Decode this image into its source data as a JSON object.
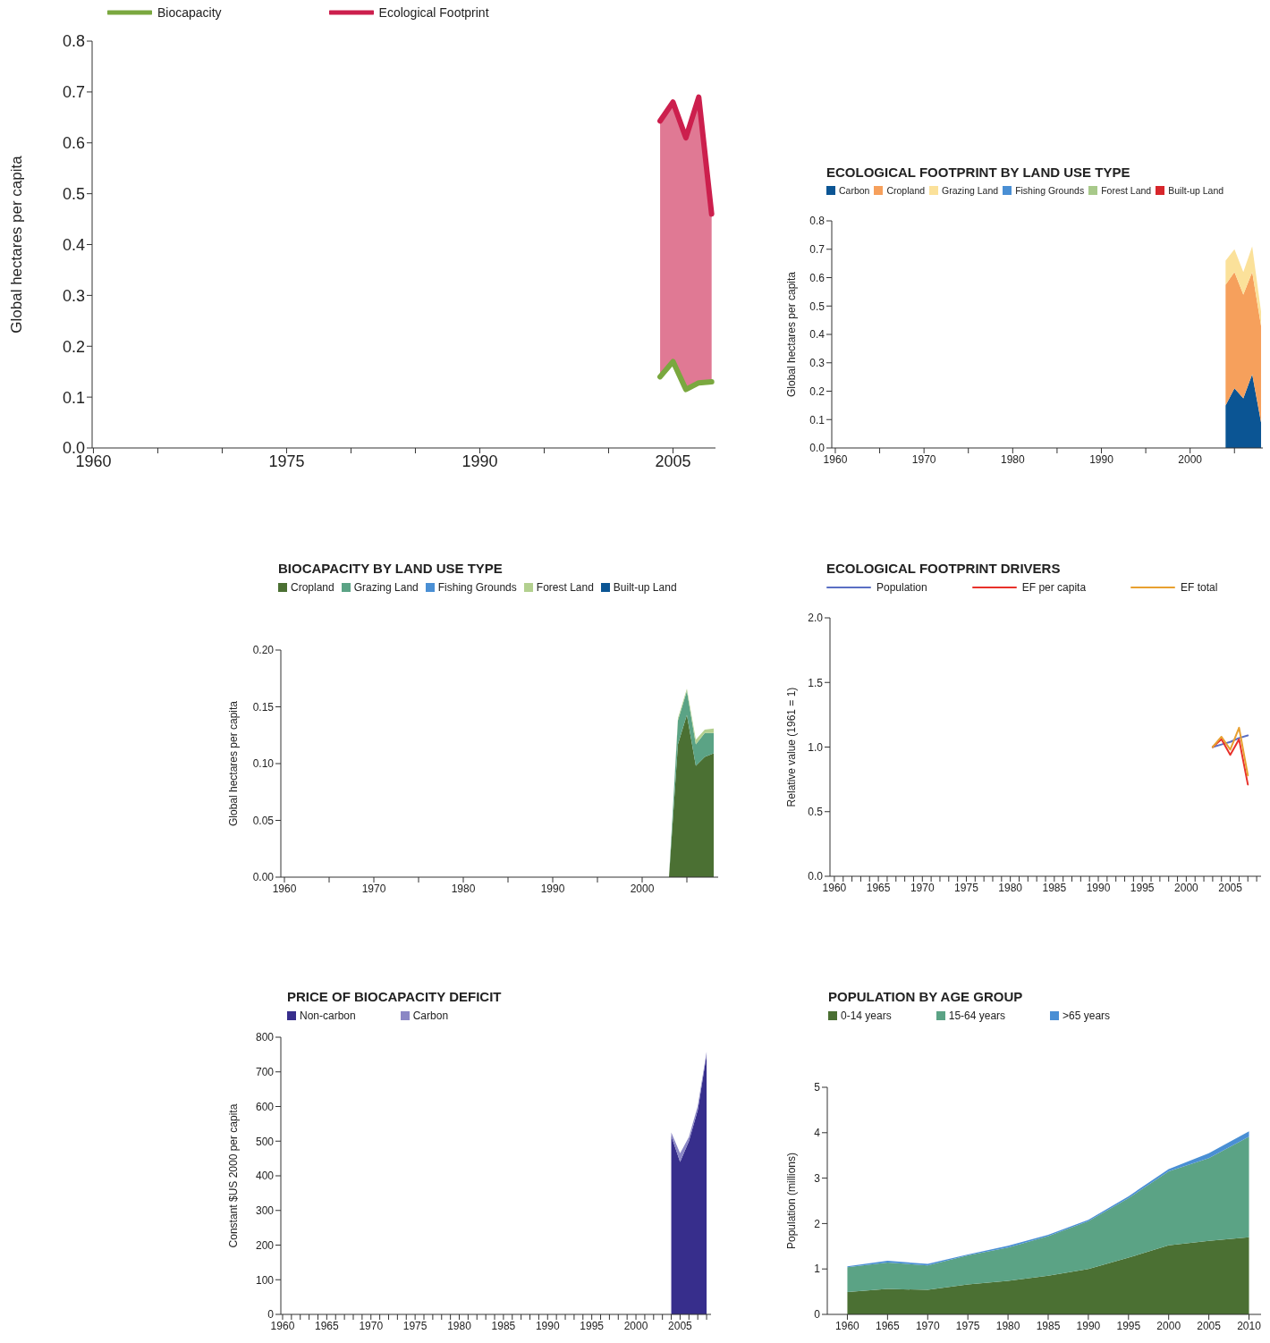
{
  "chart_data": [
    {
      "type": "line",
      "ylabel": "Global hectares per capita",
      "x": [
        2004,
        2005,
        2006,
        2007,
        2008
      ],
      "xlim": [
        1959.9,
        2008.3
      ],
      "xticks": [
        1960,
        {
          "value": 1965,
          "label": null
        },
        {
          "value": 1970,
          "label": null
        },
        1975,
        {
          "value": 1980,
          "label": null
        },
        {
          "value": 1985,
          "label": null
        },
        1990,
        {
          "value": 1995,
          "label": null
        },
        {
          "value": 2000,
          "label": null
        },
        2005
      ],
      "ylim": [
        0,
        0.8
      ],
      "yticks": [
        {
          "value": 0,
          "label": "0.0"
        },
        0.1,
        0.2,
        0.3,
        0.4,
        0.5,
        0.6,
        0.7,
        0.8
      ],
      "legend": "top left",
      "marker": "none",
      "line_style": "solid",
      "series": [
        {
          "name": "Biocapacity",
          "color": "#7aa83f",
          "values": [
            0.14,
            0.17,
            0.115,
            0.128,
            0.13
          ]
        },
        {
          "name": "Ecological Footprint",
          "color": "#cc1f4d",
          "values": [
            0.643,
            0.68,
            0.61,
            0.69,
            0.46
          ],
          "lower": [
            0.14,
            0.17,
            0.115,
            0.128,
            0.13
          ],
          "upper": [
            0.643,
            0.68,
            0.61,
            0.69,
            0.46
          ]
        }
      ]
    },
    {
      "type": "area",
      "title": "ECOLOGICAL FOOTPRINT BY LAND USE TYPE",
      "ylabel": "Global hectares per capita",
      "stacked": true,
      "x": [
        2004,
        2005,
        2006,
        2007,
        2008
      ],
      "xlim": [
        1959.6,
        2008.2
      ],
      "xticks": [
        1960,
        {
          "value": 1965,
          "label": null
        },
        1970,
        {
          "value": 1975,
          "label": null
        },
        1980,
        {
          "value": 1985,
          "label": null
        },
        1990,
        {
          "value": 1995,
          "label": null
        },
        2000,
        {
          "value": 2005,
          "label": null
        }
      ],
      "ylim": [
        0,
        0.8
      ],
      "yticks": [
        {
          "value": 0,
          "label": "0.0"
        },
        0.1,
        0.2,
        0.3,
        0.4,
        0.5,
        0.6,
        0.7,
        0.8
      ],
      "legend": "top left",
      "series": [
        {
          "name": "Carbon",
          "color": "#0b5594",
          "values": [
            0.15,
            0.21,
            0.175,
            0.26,
            0.09
          ]
        },
        {
          "name": "Cropland",
          "color": "#f6a05c",
          "values": [
            0.425,
            0.41,
            0.365,
            0.36,
            0.34
          ]
        },
        {
          "name": "Grazing Land",
          "color": "#fbe19a",
          "values": [
            0.085,
            0.08,
            0.08,
            0.09,
            0.05
          ]
        },
        {
          "name": "Fishing Grounds",
          "color": "#4a8fd4",
          "values": [
            null,
            null,
            null,
            null,
            null
          ]
        },
        {
          "name": "Forest Land",
          "color": "#a8c98a",
          "values": [
            null,
            null,
            null,
            null,
            null
          ]
        },
        {
          "name": "Built-up Land",
          "color": "#d7262b",
          "values": [
            null,
            null,
            null,
            null,
            null
          ]
        }
      ]
    },
    {
      "type": "area",
      "title": "BIOCAPACITY BY LAND USE TYPE",
      "ylabel": "Global hectares per capita",
      "stacked": true,
      "x": [
        2003,
        2004,
        2005,
        2006,
        2007,
        2008
      ],
      "xlim": [
        1959.6,
        2008.5
      ],
      "xticks": [
        1960,
        {
          "value": 1965,
          "label": null
        },
        1970,
        {
          "value": 1975,
          "label": null
        },
        1980,
        {
          "value": 1985,
          "label": null
        },
        1990,
        {
          "value": 1995,
          "label": null
        },
        2000,
        {
          "value": 2005,
          "label": null
        }
      ],
      "ylim": [
        0,
        0.2
      ],
      "yticks": [
        {
          "value": 0,
          "label": "0.00"
        },
        0.05,
        {
          "value": 0.1,
          "label": "0.10"
        },
        0.15,
        {
          "value": 0.2,
          "label": "0.20"
        }
      ],
      "legend": "top left",
      "series": [
        {
          "name": "Cropland",
          "color": "#4b7033",
          "values": [
            0,
            0.117,
            0.143,
            0.098,
            0.106,
            0.109
          ]
        },
        {
          "name": "Grazing Land",
          "color": "#5ba385",
          "values": [
            0,
            0.021,
            0.021,
            0.019,
            0.021,
            0.018
          ]
        },
        {
          "name": "Fishing Grounds",
          "color": "#4a8fd4",
          "values": [
            null,
            null,
            null,
            null,
            null,
            null
          ]
        },
        {
          "name": "Forest Land",
          "color": "#b3d08f",
          "values": [
            0,
            0.002,
            0.002,
            0.004,
            0.003,
            0.004
          ]
        },
        {
          "name": "Built-up Land",
          "color": "#0b5594",
          "values": [
            null,
            null,
            null,
            null,
            null,
            null
          ]
        }
      ]
    },
    {
      "type": "line",
      "title": "ECOLOGICAL FOOTPRINT DRIVERS",
      "ylabel": "Relative value (1961 = 1)",
      "x": [
        2003,
        2004,
        2005,
        2006,
        2007
      ],
      "xlim": [
        1959.5,
        2008.5
      ],
      "xticks": [
        1960,
        {
          "value": 1961,
          "label": null
        },
        {
          "value": 1962,
          "label": null
        },
        {
          "value": 1963,
          "label": null
        },
        {
          "value": 1964,
          "label": null
        },
        1965,
        {
          "value": 1966,
          "label": null
        },
        {
          "value": 1967,
          "label": null
        },
        {
          "value": 1968,
          "label": null
        },
        {
          "value": 1969,
          "label": null
        },
        1970,
        {
          "value": 1971,
          "label": null
        },
        {
          "value": 1972,
          "label": null
        },
        {
          "value": 1973,
          "label": null
        },
        {
          "value": 1974,
          "label": null
        },
        1975,
        {
          "value": 1976,
          "label": null
        },
        {
          "value": 1977,
          "label": null
        },
        {
          "value": 1978,
          "label": null
        },
        {
          "value": 1979,
          "label": null
        },
        1980,
        {
          "value": 1981,
          "label": null
        },
        {
          "value": 1982,
          "label": null
        },
        {
          "value": 1983,
          "label": null
        },
        {
          "value": 1984,
          "label": null
        },
        1985,
        {
          "value": 1986,
          "label": null
        },
        {
          "value": 1987,
          "label": null
        },
        {
          "value": 1988,
          "label": null
        },
        {
          "value": 1989,
          "label": null
        },
        1990,
        {
          "value": 1991,
          "label": null
        },
        {
          "value": 1992,
          "label": null
        },
        {
          "value": 1993,
          "label": null
        },
        {
          "value": 1994,
          "label": null
        },
        1995,
        {
          "value": 1996,
          "label": null
        },
        {
          "value": 1997,
          "label": null
        },
        {
          "value": 1998,
          "label": null
        },
        {
          "value": 1999,
          "label": null
        },
        2000,
        {
          "value": 2001,
          "label": null
        },
        {
          "value": 2002,
          "label": null
        },
        {
          "value": 2003,
          "label": null
        },
        {
          "value": 2004,
          "label": null
        },
        2005,
        {
          "value": 2006,
          "label": null
        },
        {
          "value": 2007,
          "label": null
        },
        {
          "value": 2008,
          "label": null
        }
      ],
      "ylim": [
        0,
        2
      ],
      "yticks": [
        {
          "value": 0,
          "label": "0.0"
        },
        0.5,
        {
          "value": 1,
          "label": "1.0"
        },
        1.5,
        {
          "value": 2,
          "label": "2.0"
        }
      ],
      "legend": "top left",
      "marker": "none",
      "line_style": "solid",
      "series": [
        {
          "name": "Population",
          "color": "#5a6fc4",
          "values": [
            1.0,
            1.02,
            1.04,
            1.07,
            1.09
          ]
        },
        {
          "name": "EF per capita",
          "color": "#e8322b",
          "values": [
            1.0,
            1.06,
            0.94,
            1.06,
            0.71
          ]
        },
        {
          "name": "EF total",
          "color": "#e8a030",
          "values": [
            1.0,
            1.08,
            0.98,
            1.15,
            0.78
          ]
        }
      ]
    },
    {
      "type": "area",
      "title": "PRICE OF BIOCAPACITY DEFICIT",
      "ylabel": "Constant $US 2000 per capita",
      "stacked": true,
      "x": [
        2004,
        2005,
        2006,
        2007,
        2008
      ],
      "xlim": [
        1959.8,
        2008.5
      ],
      "xticks": [
        1960,
        {
          "value": 1961,
          "label": null
        },
        {
          "value": 1962,
          "label": null
        },
        {
          "value": 1963,
          "label": null
        },
        {
          "value": 1964,
          "label": null
        },
        1965,
        {
          "value": 1966,
          "label": null
        },
        {
          "value": 1967,
          "label": null
        },
        {
          "value": 1968,
          "label": null
        },
        {
          "value": 1969,
          "label": null
        },
        1970,
        {
          "value": 1971,
          "label": null
        },
        {
          "value": 1972,
          "label": null
        },
        {
          "value": 1973,
          "label": null
        },
        {
          "value": 1974,
          "label": null
        },
        1975,
        {
          "value": 1976,
          "label": null
        },
        {
          "value": 1977,
          "label": null
        },
        {
          "value": 1978,
          "label": null
        },
        {
          "value": 1979,
          "label": null
        },
        1980,
        {
          "value": 1981,
          "label": null
        },
        {
          "value": 1982,
          "label": null
        },
        {
          "value": 1983,
          "label": null
        },
        {
          "value": 1984,
          "label": null
        },
        1985,
        {
          "value": 1986,
          "label": null
        },
        {
          "value": 1987,
          "label": null
        },
        {
          "value": 1988,
          "label": null
        },
        {
          "value": 1989,
          "label": null
        },
        1990,
        {
          "value": 1991,
          "label": null
        },
        {
          "value": 1992,
          "label": null
        },
        {
          "value": 1993,
          "label": null
        },
        {
          "value": 1994,
          "label": null
        },
        1995,
        {
          "value": 1996,
          "label": null
        },
        {
          "value": 1997,
          "label": null
        },
        {
          "value": 1998,
          "label": null
        },
        {
          "value": 1999,
          "label": null
        },
        2000,
        {
          "value": 2001,
          "label": null
        },
        {
          "value": 2002,
          "label": null
        },
        {
          "value": 2003,
          "label": null
        },
        {
          "value": 2004,
          "label": null
        },
        2005,
        {
          "value": 2006,
          "label": null
        },
        {
          "value": 2007,
          "label": null
        },
        {
          "value": 2008,
          "label": null
        }
      ],
      "ylim": [
        0,
        800
      ],
      "yticks": [
        0,
        100,
        200,
        300,
        400,
        500,
        600,
        700,
        800
      ],
      "legend": "top left",
      "series": [
        {
          "name": "Non-carbon",
          "color": "#372e8c",
          "values": [
            515,
            440,
            500,
            590,
            750
          ]
        },
        {
          "name": "Carbon",
          "color": "#8b87c5",
          "values": [
            10,
            25,
            12,
            12,
            8
          ]
        }
      ]
    },
    {
      "type": "area",
      "title": "POPULATION BY AGE GROUP",
      "ylabel": "Population (millions)",
      "stacked": true,
      "x": [
        1960,
        1965,
        1970,
        1975,
        1980,
        1985,
        1990,
        1995,
        2000,
        2005,
        2010
      ],
      "xlim": [
        1957.5,
        2011.5
      ],
      "xticks": [
        1960,
        1965,
        1970,
        1975,
        1980,
        1985,
        1990,
        1995,
        2000,
        2005,
        2010
      ],
      "ylim": [
        0,
        5
      ],
      "yticks": [
        0,
        1,
        2,
        3,
        4,
        5
      ],
      "legend": "top left",
      "series": [
        {
          "name": "0-14 years",
          "color": "#4b7033",
          "values": [
            0.49,
            0.56,
            0.54,
            0.66,
            0.74,
            0.85,
            1.0,
            1.25,
            1.52,
            1.62,
            1.7
          ]
        },
        {
          "name": "15-64 years",
          "color": "#5ba385",
          "values": [
            0.55,
            0.58,
            0.54,
            0.64,
            0.73,
            0.87,
            1.05,
            1.31,
            1.63,
            1.82,
            2.21
          ]
        },
        {
          "name": ">65 years",
          "color": "#4a8fd4",
          "values": [
            0.02,
            0.04,
            0.03,
            0.02,
            0.04,
            0.03,
            0.03,
            0.04,
            0.05,
            0.11,
            0.12
          ]
        }
      ]
    }
  ]
}
